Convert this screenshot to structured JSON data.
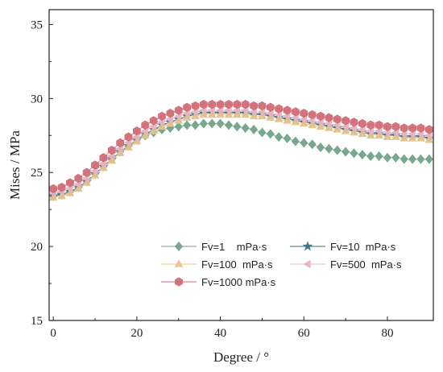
{
  "chart_data": {
    "type": "line",
    "xlabel": "Degree / °",
    "ylabel": "Mises / MPa",
    "xlim": [
      -1,
      91
    ],
    "ylim": [
      15,
      36
    ],
    "xticks": [
      0,
      20,
      40,
      60,
      80
    ],
    "yticks": [
      15,
      20,
      25,
      30,
      35
    ],
    "grid": false,
    "legend_position": "bottom-center",
    "series": [
      {
        "name": "Fv=1    mPa·s",
        "marker": "diamond",
        "color": "#6fa287",
        "x": [
          0,
          2,
          4,
          6,
          8,
          10,
          12,
          14,
          16,
          18,
          20,
          22,
          24,
          26,
          28,
          30,
          32,
          34,
          36,
          38,
          40,
          42,
          44,
          46,
          48,
          50,
          52,
          54,
          56,
          58,
          60,
          62,
          64,
          66,
          68,
          70,
          72,
          74,
          76,
          78,
          80,
          82,
          84,
          86,
          88,
          90
        ],
        "values": [
          23.4,
          23.5,
          23.7,
          24.0,
          24.4,
          24.9,
          25.4,
          25.9,
          26.4,
          26.8,
          27.2,
          27.5,
          27.7,
          27.9,
          28.0,
          28.1,
          28.2,
          28.2,
          28.3,
          28.3,
          28.3,
          28.2,
          28.1,
          28.0,
          27.9,
          27.7,
          27.6,
          27.4,
          27.3,
          27.1,
          27.0,
          26.9,
          26.7,
          26.6,
          26.5,
          26.4,
          26.3,
          26.2,
          26.1,
          26.1,
          26.0,
          26.0,
          25.9,
          25.9,
          25.9,
          25.9
        ]
      },
      {
        "name": "Fv=10  mPa·s",
        "marker": "star",
        "color": "#3a6f80",
        "x": [
          0,
          2,
          4,
          6,
          8,
          10,
          12,
          14,
          16,
          18,
          20,
          22,
          24,
          26,
          28,
          30,
          32,
          34,
          36,
          38,
          40,
          42,
          44,
          46,
          48,
          50,
          52,
          54,
          56,
          58,
          60,
          62,
          64,
          66,
          68,
          70,
          72,
          74,
          76,
          78,
          80,
          82,
          84,
          86,
          88,
          90
        ],
        "values": [
          23.4,
          23.5,
          23.7,
          24.0,
          24.4,
          24.9,
          25.4,
          25.9,
          26.4,
          26.8,
          27.2,
          27.6,
          27.9,
          28.2,
          28.4,
          28.6,
          28.8,
          28.9,
          29.0,
          29.0,
          29.0,
          29.0,
          29.0,
          29.0,
          28.9,
          28.9,
          28.8,
          28.7,
          28.6,
          28.5,
          28.4,
          28.3,
          28.2,
          28.1,
          28.0,
          27.9,
          27.8,
          27.7,
          27.6,
          27.6,
          27.5,
          27.5,
          27.4,
          27.4,
          27.4,
          27.3
        ]
      },
      {
        "name": "Fv=100  mPa·s",
        "marker": "triangle-up",
        "color": "#e8c48e",
        "x": [
          0,
          2,
          4,
          6,
          8,
          10,
          12,
          14,
          16,
          18,
          20,
          22,
          24,
          26,
          28,
          30,
          32,
          34,
          36,
          38,
          40,
          42,
          44,
          46,
          48,
          50,
          52,
          54,
          56,
          58,
          60,
          62,
          64,
          66,
          68,
          70,
          72,
          74,
          76,
          78,
          80,
          82,
          84,
          86,
          88,
          90
        ],
        "values": [
          23.3,
          23.4,
          23.6,
          23.9,
          24.3,
          24.8,
          25.3,
          25.8,
          26.3,
          26.7,
          27.1,
          27.5,
          27.8,
          28.1,
          28.3,
          28.5,
          28.7,
          28.8,
          28.9,
          28.9,
          28.9,
          28.9,
          28.9,
          28.9,
          28.8,
          28.8,
          28.7,
          28.6,
          28.5,
          28.4,
          28.3,
          28.2,
          28.1,
          28.0,
          27.9,
          27.8,
          27.7,
          27.6,
          27.5,
          27.5,
          27.4,
          27.4,
          27.3,
          27.3,
          27.3,
          27.2
        ]
      },
      {
        "name": "Fv=500  mPa·s",
        "marker": "triangle-left",
        "color": "#e8b3c0",
        "x": [
          0,
          2,
          4,
          6,
          8,
          10,
          12,
          14,
          16,
          18,
          20,
          22,
          24,
          26,
          28,
          30,
          32,
          34,
          36,
          38,
          40,
          42,
          44,
          46,
          48,
          50,
          52,
          54,
          56,
          58,
          60,
          62,
          64,
          66,
          68,
          70,
          72,
          74,
          76,
          78,
          80,
          82,
          84,
          86,
          88,
          90
        ],
        "values": [
          23.6,
          23.7,
          23.9,
          24.2,
          24.6,
          25.1,
          25.6,
          26.1,
          26.6,
          27.0,
          27.4,
          27.8,
          28.1,
          28.4,
          28.6,
          28.8,
          29.0,
          29.1,
          29.2,
          29.2,
          29.2,
          29.2,
          29.2,
          29.2,
          29.1,
          29.1,
          29.0,
          28.9,
          28.8,
          28.7,
          28.6,
          28.5,
          28.4,
          28.3,
          28.2,
          28.1,
          28.0,
          27.9,
          27.8,
          27.8,
          27.7,
          27.7,
          27.6,
          27.6,
          27.6,
          27.5
        ]
      },
      {
        "name": "Fv=1000 mPa·s",
        "marker": "hexagon",
        "color": "#d06873",
        "x": [
          0,
          2,
          4,
          6,
          8,
          10,
          12,
          14,
          16,
          18,
          20,
          22,
          24,
          26,
          28,
          30,
          32,
          34,
          36,
          38,
          40,
          42,
          44,
          46,
          48,
          50,
          52,
          54,
          56,
          58,
          60,
          62,
          64,
          66,
          68,
          70,
          72,
          74,
          76,
          78,
          80,
          82,
          84,
          86,
          88,
          90
        ],
        "values": [
          23.9,
          24.0,
          24.3,
          24.6,
          25.0,
          25.5,
          26.0,
          26.5,
          27.0,
          27.4,
          27.8,
          28.2,
          28.5,
          28.8,
          29.0,
          29.2,
          29.4,
          29.5,
          29.6,
          29.6,
          29.6,
          29.6,
          29.6,
          29.6,
          29.5,
          29.5,
          29.4,
          29.3,
          29.2,
          29.1,
          29.0,
          28.9,
          28.8,
          28.7,
          28.6,
          28.5,
          28.4,
          28.3,
          28.2,
          28.2,
          28.1,
          28.1,
          28.0,
          28.0,
          28.0,
          27.9
        ]
      }
    ]
  }
}
